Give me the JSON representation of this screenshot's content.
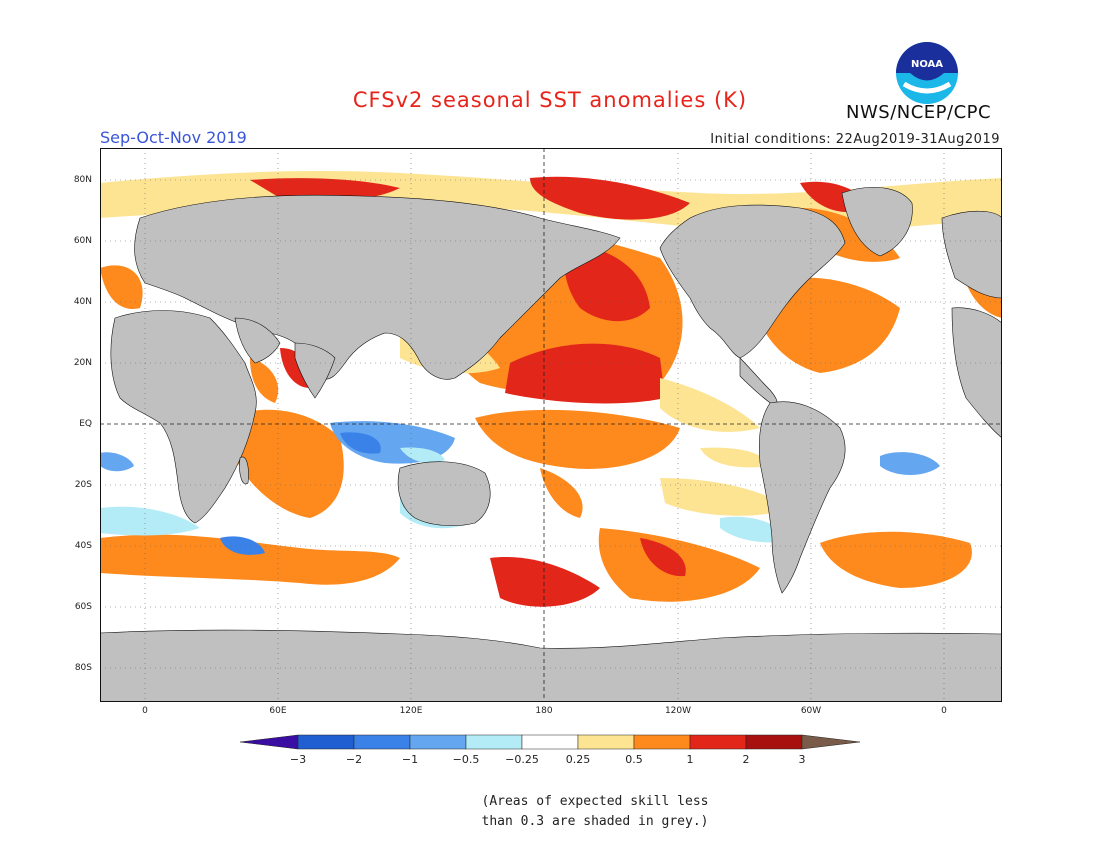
{
  "header": {
    "title": "CFSv2 seasonal SST anomalies (K)",
    "season": "Sep-Oct-Nov 2019",
    "initial_conditions": "Initial conditions: 22Aug2019-31Aug2019",
    "agency": "NWS/NCEP/CPC",
    "logo_text": "NOAA"
  },
  "map": {
    "lat_labels": [
      "80N",
      "60N",
      "40N",
      "20N",
      "EQ",
      "20S",
      "40S",
      "60S",
      "80S"
    ],
    "lon_labels": [
      "0",
      "60E",
      "120E",
      "180",
      "120W",
      "60W",
      "0"
    ],
    "land_color": "#c0c0c0",
    "ocean_color": "#ffffff"
  },
  "colorbar": {
    "ticks": [
      "−3",
      "−2",
      "−1",
      "−0.5",
      "−0.25",
      "0.25",
      "0.5",
      "1",
      "2",
      "3"
    ],
    "colors": [
      "#3a0ea3",
      "#1f5fd1",
      "#3b82e8",
      "#64a6f0",
      "#b3ecf6",
      "#ffffff",
      "#fde493",
      "#fe8a1d",
      "#e3261a",
      "#a80f0f",
      "#7a5a48"
    ]
  },
  "footnote": "(Areas of expected skill less\nthan 0.3 are shaded in grey.)"
}
